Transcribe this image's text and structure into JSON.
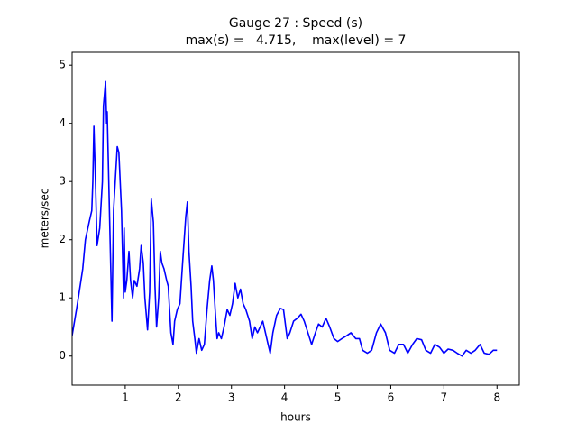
{
  "chart_data": {
    "type": "line",
    "title": "Gauge 27 : Speed (s)",
    "subtitle": "max(s) =   4.715,    max(level) = 7",
    "x_label": "hours",
    "y_label": "meters/sec",
    "xlim": [
      0,
      8.42
    ],
    "ylim": [
      -0.5,
      5.22
    ],
    "xticks": [
      1,
      2,
      3,
      4,
      5,
      6,
      7,
      8
    ],
    "yticks": [
      0,
      1,
      2,
      3,
      4,
      5
    ],
    "grid": false,
    "series": [
      {
        "color": "#0000ff",
        "x": [
          0.0,
          0.1,
          0.2,
          0.25,
          0.32,
          0.37,
          0.39,
          0.41,
          0.44,
          0.47,
          0.52,
          0.57,
          0.59,
          0.63,
          0.65,
          0.66,
          0.69,
          0.75,
          0.78,
          0.85,
          0.88,
          0.93,
          0.97,
          0.98,
          1.0,
          1.03,
          1.07,
          1.1,
          1.14,
          1.17,
          1.22,
          1.27,
          1.3,
          1.34,
          1.37,
          1.42,
          1.46,
          1.49,
          1.53,
          1.56,
          1.59,
          1.63,
          1.66,
          1.69,
          1.73,
          1.78,
          1.81,
          1.86,
          1.9,
          1.93,
          1.98,
          2.03,
          2.08,
          2.14,
          2.17,
          2.2,
          2.24,
          2.27,
          2.31,
          2.34,
          2.39,
          2.44,
          2.49,
          2.54,
          2.59,
          2.63,
          2.66,
          2.7,
          2.73,
          2.76,
          2.81,
          2.86,
          2.92,
          2.97,
          3.02,
          3.07,
          3.12,
          3.17,
          3.22,
          3.27,
          3.34,
          3.39,
          3.44,
          3.49,
          3.54,
          3.59,
          3.64,
          3.69,
          3.73,
          3.78,
          3.85,
          3.92,
          3.98,
          4.05,
          4.1,
          4.17,
          4.24,
          4.31,
          4.37,
          4.44,
          4.51,
          4.58,
          4.64,
          4.71,
          4.78,
          4.85,
          4.93,
          5.0,
          5.08,
          5.17,
          5.25,
          5.34,
          5.41,
          5.47,
          5.56,
          5.64,
          5.73,
          5.81,
          5.9,
          5.98,
          6.07,
          6.15,
          6.24,
          6.32,
          6.41,
          6.49,
          6.58,
          6.66,
          6.75,
          6.83,
          6.92,
          7.0,
          7.08,
          7.17,
          7.25,
          7.34,
          7.42,
          7.51,
          7.59,
          7.68,
          7.76,
          7.85,
          7.93,
          8.0
        ],
        "values": [
          0.35,
          0.9,
          1.5,
          2.0,
          2.3,
          2.5,
          3.0,
          3.95,
          3.0,
          1.9,
          2.2,
          3.0,
          4.3,
          4.72,
          4.0,
          4.2,
          3.0,
          0.6,
          2.5,
          3.6,
          3.5,
          2.5,
          1.0,
          2.2,
          1.1,
          1.3,
          1.8,
          1.3,
          1.0,
          1.3,
          1.2,
          1.5,
          1.9,
          1.6,
          1.0,
          0.45,
          1.1,
          2.7,
          2.3,
          1.2,
          0.5,
          1.0,
          1.8,
          1.6,
          1.5,
          1.3,
          1.2,
          0.4,
          0.2,
          0.6,
          0.8,
          0.9,
          1.6,
          2.4,
          2.65,
          1.8,
          1.2,
          0.6,
          0.3,
          0.05,
          0.3,
          0.1,
          0.2,
          0.8,
          1.3,
          1.55,
          1.3,
          0.7,
          0.3,
          0.4,
          0.3,
          0.5,
          0.8,
          0.7,
          0.9,
          1.25,
          1.0,
          1.15,
          0.9,
          0.8,
          0.6,
          0.3,
          0.5,
          0.4,
          0.5,
          0.6,
          0.4,
          0.2,
          0.05,
          0.4,
          0.7,
          0.82,
          0.8,
          0.3,
          0.4,
          0.6,
          0.65,
          0.72,
          0.6,
          0.4,
          0.2,
          0.4,
          0.55,
          0.5,
          0.65,
          0.5,
          0.3,
          0.25,
          0.3,
          0.35,
          0.4,
          0.3,
          0.3,
          0.1,
          0.05,
          0.1,
          0.4,
          0.55,
          0.4,
          0.1,
          0.05,
          0.2,
          0.2,
          0.05,
          0.2,
          0.3,
          0.28,
          0.1,
          0.05,
          0.2,
          0.15,
          0.05,
          0.12,
          0.1,
          0.05,
          0.0,
          0.1,
          0.05,
          0.1,
          0.2,
          0.05,
          0.03,
          0.1,
          0.1
        ]
      }
    ]
  }
}
